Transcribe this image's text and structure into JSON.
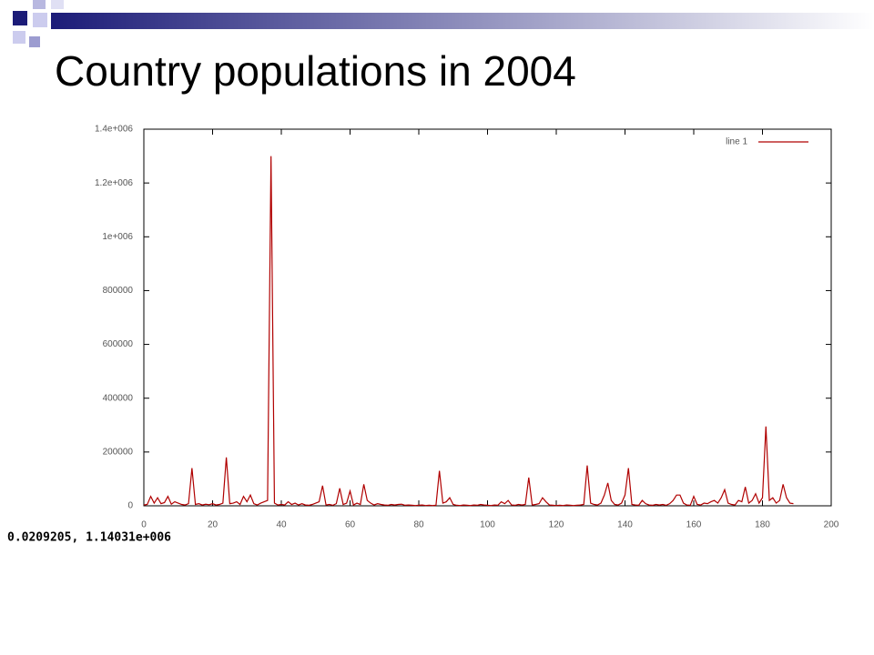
{
  "chart_data": {
    "type": "line",
    "title": "Country populations in 2004",
    "annotation": "0.0209205, 1.14031e+006",
    "x": [
      0,
      1,
      2,
      3,
      4,
      5,
      6,
      7,
      8,
      9,
      10,
      11,
      12,
      13,
      14,
      15,
      16,
      17,
      18,
      19,
      20,
      21,
      22,
      23,
      24,
      25,
      26,
      27,
      28,
      29,
      30,
      31,
      32,
      33,
      34,
      35,
      36,
      37,
      38,
      39,
      40,
      41,
      42,
      43,
      44,
      45,
      46,
      47,
      48,
      49,
      50,
      51,
      52,
      53,
      54,
      55,
      56,
      57,
      58,
      59,
      60,
      61,
      62,
      63,
      64,
      65,
      66,
      67,
      68,
      69,
      70,
      71,
      72,
      73,
      74,
      75,
      76,
      77,
      78,
      79,
      80,
      81,
      82,
      83,
      84,
      85,
      86,
      87,
      88,
      89,
      90,
      91,
      92,
      93,
      94,
      95,
      96,
      97,
      98,
      99,
      100,
      101,
      102,
      103,
      104,
      105,
      106,
      107,
      108,
      109,
      110,
      111,
      112,
      113,
      114,
      115,
      116,
      117,
      118,
      119,
      120,
      121,
      122,
      123,
      124,
      125,
      126,
      127,
      128,
      129,
      130,
      131,
      132,
      133,
      134,
      135,
      136,
      137,
      138,
      139,
      140,
      141,
      142,
      143,
      144,
      145,
      146,
      147,
      148,
      149,
      150,
      151,
      152,
      153,
      154,
      155,
      156,
      157,
      158,
      159,
      160,
      161,
      162,
      163,
      164,
      165,
      166,
      167,
      168,
      169,
      170,
      171,
      172,
      173,
      174,
      175,
      176,
      177,
      178,
      179,
      180,
      181,
      182,
      183,
      184,
      185,
      186,
      187,
      188,
      189
    ],
    "series": [
      {
        "name": "line 1",
        "color": "#b00000",
        "values": [
          3000,
          5000,
          35000,
          10000,
          30000,
          8000,
          12000,
          35000,
          6000,
          15000,
          10000,
          5000,
          3000,
          8000,
          140000,
          5000,
          8000,
          3000,
          6000,
          4000,
          8000,
          3000,
          5000,
          10000,
          180000,
          8000,
          10000,
          15000,
          5000,
          35000,
          15000,
          40000,
          8000,
          3000,
          10000,
          15000,
          20000,
          1300000,
          10000,
          3000,
          5000,
          3000,
          15000,
          5000,
          10000,
          3000,
          8000,
          3000,
          2000,
          5000,
          10000,
          15000,
          75000,
          3000,
          5000,
          2000,
          8000,
          65000,
          5000,
          10000,
          55000,
          3000,
          10000,
          5000,
          80000,
          20000,
          10000,
          3000,
          8000,
          5000,
          3000,
          2000,
          5000,
          3000,
          5000,
          6000,
          2000,
          3000,
          2000,
          1000,
          2000,
          3000,
          1000,
          2000,
          1000,
          2000,
          130000,
          10000,
          15000,
          30000,
          5000,
          2000,
          1000,
          3000,
          2000,
          1000,
          3000,
          2000,
          5000,
          3000,
          2000,
          1000,
          3000,
          2000,
          15000,
          8000,
          20000,
          3000,
          2000,
          5000,
          3000,
          5000,
          105000,
          3000,
          5000,
          8000,
          30000,
          15000,
          3000,
          2000,
          1000,
          2000,
          1000,
          3000,
          2000,
          1000,
          2000,
          3000,
          5000,
          150000,
          10000,
          5000,
          3000,
          10000,
          40000,
          85000,
          20000,
          5000,
          3000,
          10000,
          40000,
          140000,
          5000,
          3000,
          2000,
          20000,
          8000,
          3000,
          2000,
          5000,
          3000,
          5000,
          2000,
          8000,
          20000,
          40000,
          40000,
          10000,
          3000,
          2000,
          35000,
          5000,
          3000,
          10000,
          8000,
          15000,
          20000,
          10000,
          30000,
          60000,
          10000,
          5000,
          3000,
          20000,
          15000,
          70000,
          10000,
          20000,
          45000,
          10000,
          30000,
          295000,
          20000,
          30000,
          10000,
          20000,
          80000,
          30000,
          10000,
          8000
        ]
      }
    ],
    "xlim": [
      0,
      200
    ],
    "xticks": [
      0,
      20,
      40,
      60,
      80,
      100,
      120,
      140,
      160,
      180,
      200
    ],
    "ylim": [
      0,
      1400000
    ],
    "yticks": [
      0,
      200000,
      400000,
      600000,
      800000,
      {
        "value": 1000000,
        "label": "1e+006"
      },
      {
        "value": 1200000,
        "label": "1.2e+006"
      },
      {
        "value": 1400000,
        "label": "1.4e+006"
      }
    ],
    "legend": "top-right"
  }
}
